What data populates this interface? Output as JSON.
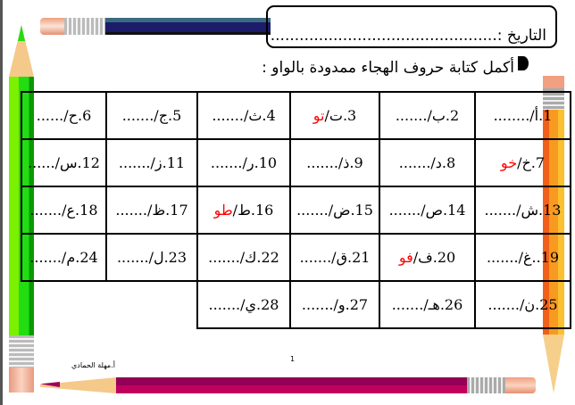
{
  "header": {
    "date_label": "التاريخ :",
    "date_value": "..............................................."
  },
  "instruction": "أكمل كتابة حروف الهجاء ممدودة بالواو :",
  "colors": {
    "answer": "#ff0000"
  },
  "grid": [
    [
      {
        "label": "1.أ/",
        "answer": "",
        "dots": "........"
      },
      {
        "label": "2.ب/",
        "answer": "",
        "dots": "......."
      },
      {
        "label": "3.ت/",
        "answer": "تو",
        "dots": ""
      },
      {
        "label": "4.ث/",
        "answer": "",
        "dots": "......."
      },
      {
        "label": "5.ج/",
        "answer": "",
        "dots": "......."
      },
      {
        "label": "6.ح/",
        "answer": "",
        "dots": "......"
      }
    ],
    [
      {
        "label": "7.خ/",
        "answer": "خو",
        "dots": ""
      },
      {
        "label": "8.د/",
        "answer": "",
        "dots": "......."
      },
      {
        "label": "9.ذ/",
        "answer": "",
        "dots": "......."
      },
      {
        "label": "10.ر/",
        "answer": "",
        "dots": "......."
      },
      {
        "label": "11.ز/",
        "answer": "",
        "dots": "......."
      },
      {
        "label": "12.س/",
        "answer": "",
        "dots": "......"
      }
    ],
    [
      {
        "label": "13.ش/",
        "answer": "",
        "dots": "......."
      },
      {
        "label": "14.ص/",
        "answer": "",
        "dots": "......."
      },
      {
        "label": "15.ض/",
        "answer": "",
        "dots": "......."
      },
      {
        "label": "16.ط/",
        "answer": "طو",
        "dots": ""
      },
      {
        "label": "17.ظ/",
        "answer": "",
        "dots": "......."
      },
      {
        "label": "18.ع/",
        "answer": "",
        "dots": "......."
      }
    ],
    [
      {
        "label": "19..غ/",
        "answer": "",
        "dots": "......."
      },
      {
        "label": "20.ف/",
        "answer": "فو",
        "dots": ""
      },
      {
        "label": "21.ق/",
        "answer": "",
        "dots": "......."
      },
      {
        "label": "22.ك/",
        "answer": "",
        "dots": "......."
      },
      {
        "label": "23.ل/",
        "answer": "",
        "dots": "......."
      },
      {
        "label": "24.م/",
        "answer": "",
        "dots": "......."
      }
    ],
    [
      {
        "label": "25.ن/",
        "answer": "",
        "dots": "......."
      },
      {
        "label": "26.هـ/",
        "answer": "",
        "dots": "......."
      },
      {
        "label": "27.و/",
        "answer": "",
        "dots": "......."
      },
      {
        "label": "28.ي/",
        "answer": "",
        "dots": "......."
      }
    ]
  ],
  "footer": {
    "author": "أ.مهلة الحمادي",
    "page_number": "1"
  }
}
